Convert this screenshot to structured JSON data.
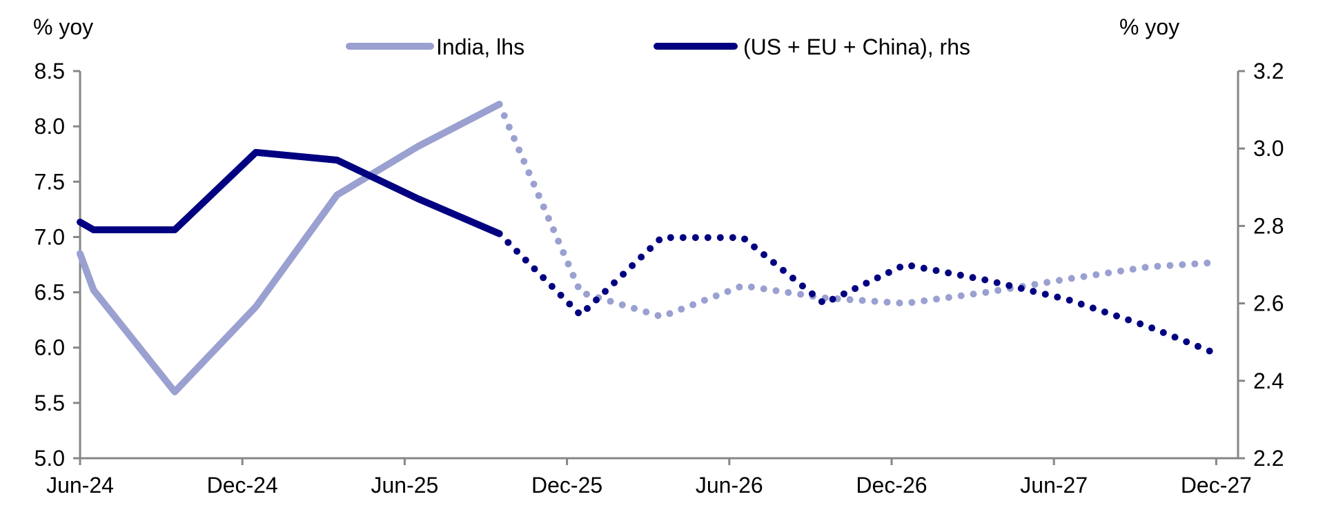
{
  "chart_data": {
    "type": "line",
    "title": "",
    "ylabel_left": "% yoy",
    "ylabel_right": "% yoy",
    "ylim_left": [
      5.0,
      8.5
    ],
    "ylim_right": [
      2.2,
      3.2
    ],
    "yticks_left": [
      "5.0",
      "5.5",
      "6.0",
      "6.5",
      "7.0",
      "7.5",
      "8.0",
      "8.5"
    ],
    "yticks_right": [
      "2.2",
      "2.4",
      "2.6",
      "2.8",
      "3.0",
      "3.2"
    ],
    "xticks": [
      {
        "date": "2024-06-01",
        "label": "Jun-24"
      },
      {
        "date": "2024-12-01",
        "label": "Dec-24"
      },
      {
        "date": "2025-06-01",
        "label": "Jun-25"
      },
      {
        "date": "2025-12-01",
        "label": "Dec-25"
      },
      {
        "date": "2026-06-01",
        "label": "Jun-26"
      },
      {
        "date": "2026-12-01",
        "label": "Dec-26"
      },
      {
        "date": "2027-06-01",
        "label": "Jun-27"
      },
      {
        "date": "2027-12-01",
        "label": "Dec-27"
      }
    ],
    "grid": false,
    "legend_position": "top",
    "series": [
      {
        "name": "India, lhs",
        "axis": "left",
        "color": "#9aa0d0",
        "actual": [
          [
            "2024-06-01",
            6.85
          ],
          [
            "2024-06-16",
            6.52
          ],
          [
            "2024-09-16",
            5.6
          ],
          [
            "2024-12-16",
            6.37
          ],
          [
            "2025-03-16",
            7.38
          ],
          [
            "2025-06-16",
            7.82
          ],
          [
            "2025-09-16",
            8.2
          ]
        ],
        "forecast": [
          [
            "2025-09-16",
            8.2
          ],
          [
            "2025-12-16",
            6.5
          ],
          [
            "2026-03-16",
            6.28
          ],
          [
            "2026-06-16",
            6.56
          ],
          [
            "2026-09-16",
            6.45
          ],
          [
            "2026-12-16",
            6.4
          ],
          [
            "2027-03-16",
            6.5
          ],
          [
            "2027-06-16",
            6.62
          ],
          [
            "2027-09-16",
            6.73
          ],
          [
            "2027-12-01",
            6.77
          ]
        ]
      },
      {
        "name": "(US + EU + China), rhs",
        "axis": "right",
        "color": "#000080",
        "actual": [
          [
            "2024-06-01",
            2.81
          ],
          [
            "2024-06-16",
            2.79
          ],
          [
            "2024-09-16",
            2.79
          ],
          [
            "2024-12-16",
            2.99
          ],
          [
            "2025-03-16",
            2.97
          ],
          [
            "2025-06-16",
            2.87
          ],
          [
            "2025-09-16",
            2.78
          ]
        ],
        "forecast": [
          [
            "2025-09-16",
            2.78
          ],
          [
            "2025-12-16",
            2.57
          ],
          [
            "2026-03-16",
            2.77
          ],
          [
            "2026-06-16",
            2.77
          ],
          [
            "2026-09-16",
            2.6
          ],
          [
            "2026-12-16",
            2.7
          ],
          [
            "2027-03-16",
            2.66
          ],
          [
            "2027-06-16",
            2.61
          ],
          [
            "2027-09-16",
            2.54
          ],
          [
            "2027-12-01",
            2.47
          ]
        ]
      }
    ]
  }
}
